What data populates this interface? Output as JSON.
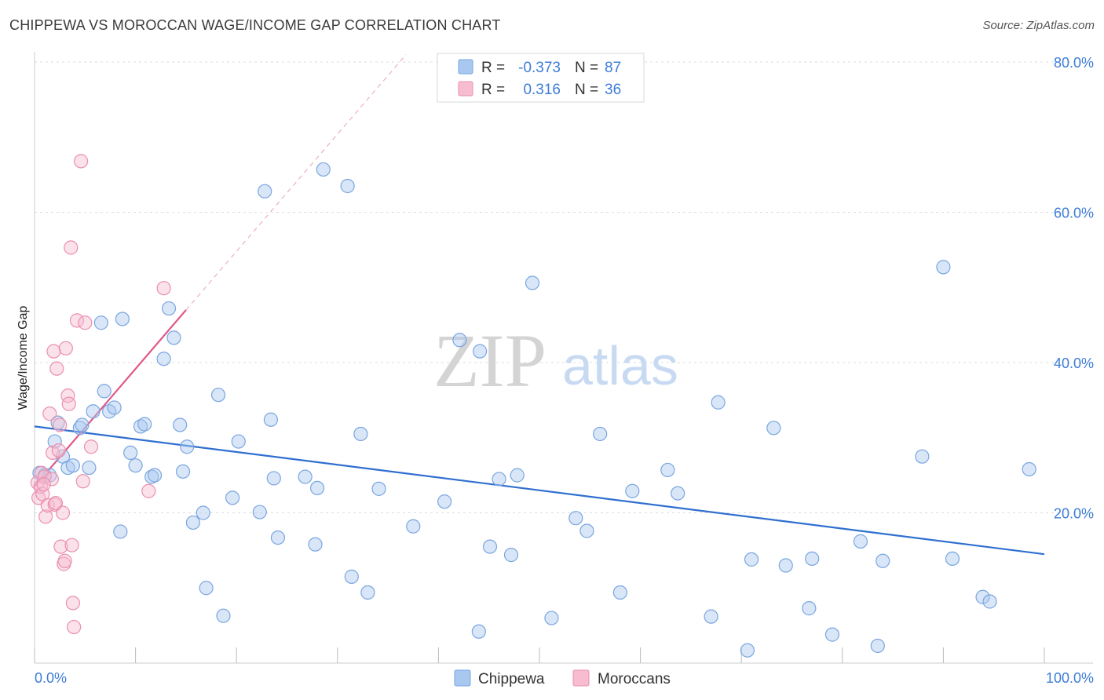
{
  "title": "CHIPPEWA VS MOROCCAN WAGE/INCOME GAP CORRELATION CHART",
  "source": "Source: ZipAtlas.com",
  "watermark": {
    "zip": "ZIP",
    "atlas": "atlas"
  },
  "legend_box": {
    "rows": [
      {
        "r_label": "R =",
        "r_value": "-0.373",
        "n_label": "N =",
        "n_value": "87",
        "color": "#a9c8f0",
        "stroke": "#7aa6e0"
      },
      {
        "r_label": "R =",
        "r_value": "0.316",
        "n_label": "N =",
        "n_value": "36",
        "color": "#f7bcd0",
        "stroke": "#ea8fb0"
      }
    ]
  },
  "bottom_legend": [
    {
      "label": "Chippewa",
      "color": "#a9c8f0"
    },
    {
      "label": "Moroccans",
      "color": "#f7bcd0"
    }
  ],
  "chart_data": {
    "type": "scatter",
    "title": "CHIPPEWA VS MOROCCAN WAGE/INCOME GAP CORRELATION CHART",
    "xlabel": "",
    "ylabel": "Wage/Income Gap",
    "xlim": [
      0,
      100
    ],
    "ylim": [
      0,
      80
    ],
    "x_tick_labels": [
      "0.0%",
      "100.0%"
    ],
    "y_tick_labels": [
      "20.0%",
      "40.0%",
      "60.0%",
      "80.0%"
    ],
    "y_ticks": [
      20,
      40,
      60,
      80
    ],
    "grid": true,
    "legend_position": "top-center",
    "series": [
      {
        "name": "Chippewa",
        "color": "#a9c8f0",
        "stroke": "#7aa6e0",
        "trend": {
          "x": [
            0,
            100
          ],
          "y": [
            31.5,
            14.5
          ],
          "color": "#2f6fd0"
        },
        "points": [
          [
            0.5,
            25.3
          ],
          [
            1.0,
            25.0
          ],
          [
            1.5,
            25.0
          ],
          [
            2.0,
            29.5
          ],
          [
            2.3,
            32.0
          ],
          [
            2.8,
            27.5
          ],
          [
            3.3,
            26.0
          ],
          [
            3.8,
            26.3
          ],
          [
            4.5,
            31.3
          ],
          [
            4.7,
            31.7
          ],
          [
            5.4,
            26.0
          ],
          [
            5.8,
            33.5
          ],
          [
            6.6,
            45.3
          ],
          [
            6.9,
            36.2
          ],
          [
            7.4,
            33.5
          ],
          [
            7.9,
            34.0
          ],
          [
            8.5,
            17.5
          ],
          [
            8.7,
            45.8
          ],
          [
            9.5,
            28.0
          ],
          [
            10.0,
            26.3
          ],
          [
            10.5,
            31.5
          ],
          [
            10.9,
            31.8
          ],
          [
            11.6,
            24.8
          ],
          [
            11.9,
            25.0
          ],
          [
            12.8,
            40.5
          ],
          [
            13.3,
            47.2
          ],
          [
            13.8,
            43.3
          ],
          [
            14.4,
            31.7
          ],
          [
            14.7,
            25.5
          ],
          [
            15.1,
            28.8
          ],
          [
            15.7,
            18.7
          ],
          [
            16.7,
            20.0
          ],
          [
            17.0,
            10.0
          ],
          [
            18.2,
            35.7
          ],
          [
            18.7,
            6.3
          ],
          [
            19.6,
            22.0
          ],
          [
            20.2,
            29.5
          ],
          [
            22.3,
            20.1
          ],
          [
            22.8,
            62.8
          ],
          [
            23.4,
            32.4
          ],
          [
            23.7,
            24.6
          ],
          [
            24.1,
            16.7
          ],
          [
            26.8,
            24.8
          ],
          [
            27.8,
            15.8
          ],
          [
            28.0,
            23.3
          ],
          [
            28.6,
            65.7
          ],
          [
            31.0,
            63.5
          ],
          [
            31.4,
            11.5
          ],
          [
            32.3,
            30.5
          ],
          [
            33.0,
            9.4
          ],
          [
            34.1,
            23.2
          ],
          [
            37.5,
            18.2
          ],
          [
            40.6,
            21.5
          ],
          [
            42.1,
            43.0
          ],
          [
            44.0,
            4.2
          ],
          [
            44.1,
            41.5
          ],
          [
            45.1,
            15.5
          ],
          [
            46.0,
            24.5
          ],
          [
            47.2,
            14.4
          ],
          [
            47.8,
            25.0
          ],
          [
            49.3,
            50.6
          ],
          [
            51.2,
            6.0
          ],
          [
            53.6,
            19.3
          ],
          [
            54.7,
            17.6
          ],
          [
            56.0,
            30.5
          ],
          [
            58.0,
            9.4
          ],
          [
            59.2,
            22.9
          ],
          [
            62.7,
            25.7
          ],
          [
            63.7,
            22.6
          ],
          [
            67.0,
            6.2
          ],
          [
            67.7,
            34.7
          ],
          [
            70.6,
            1.7
          ],
          [
            71.0,
            13.8
          ],
          [
            73.2,
            31.3
          ],
          [
            74.4,
            13.0
          ],
          [
            76.7,
            7.3
          ],
          [
            77.0,
            13.9
          ],
          [
            79.0,
            3.8
          ],
          [
            81.8,
            16.2
          ],
          [
            83.5,
            2.3
          ],
          [
            84.0,
            13.6
          ],
          [
            87.9,
            27.5
          ],
          [
            90.0,
            52.7
          ],
          [
            90.9,
            13.9
          ],
          [
            93.9,
            8.8
          ],
          [
            94.6,
            8.2
          ],
          [
            98.5,
            25.8
          ]
        ]
      },
      {
        "name": "Moroccans",
        "color": "#f7bcd0",
        "stroke": "#ea8fb0",
        "trend": {
          "x": [
            0,
            15
          ],
          "y": [
            23.5,
            47.0
          ],
          "color": "#e0588a",
          "extend_to_x": 36.8,
          "extend_to_y": 81.0
        },
        "points": [
          [
            0.3,
            24.0
          ],
          [
            0.4,
            22.0
          ],
          [
            0.6,
            23.5
          ],
          [
            0.7,
            25.3
          ],
          [
            0.8,
            22.5
          ],
          [
            1.0,
            24.8
          ],
          [
            1.1,
            19.5
          ],
          [
            1.3,
            21.0
          ],
          [
            1.5,
            33.2
          ],
          [
            1.7,
            24.5
          ],
          [
            1.8,
            28.0
          ],
          [
            1.9,
            41.5
          ],
          [
            2.0,
            21.1
          ],
          [
            2.1,
            21.3
          ],
          [
            2.2,
            39.2
          ],
          [
            2.4,
            28.3
          ],
          [
            2.5,
            31.7
          ],
          [
            2.6,
            15.5
          ],
          [
            2.8,
            20.0
          ],
          [
            2.9,
            13.2
          ],
          [
            3.0,
            13.6
          ],
          [
            3.1,
            41.9
          ],
          [
            3.3,
            35.6
          ],
          [
            3.4,
            34.5
          ],
          [
            3.6,
            55.3
          ],
          [
            3.7,
            15.7
          ],
          [
            3.8,
            8.0
          ],
          [
            3.9,
            4.8
          ],
          [
            4.2,
            45.6
          ],
          [
            4.6,
            66.8
          ],
          [
            4.8,
            24.2
          ],
          [
            5.0,
            45.3
          ],
          [
            5.6,
            28.8
          ],
          [
            11.3,
            22.9
          ],
          [
            12.8,
            49.9
          ],
          [
            0.9,
            23.8
          ]
        ]
      }
    ]
  }
}
